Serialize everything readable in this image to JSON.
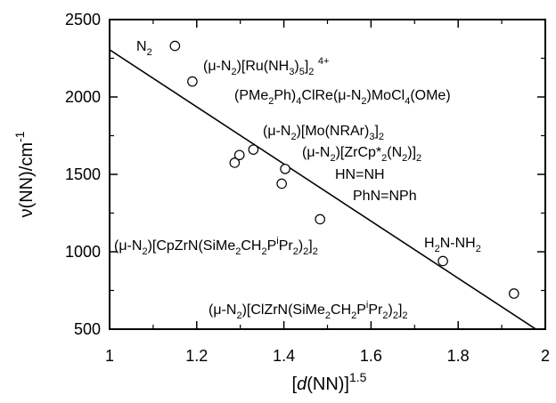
{
  "chart_data": {
    "type": "scatter",
    "xlabel": {
      "open": "[",
      "italic": "d",
      "rest": "(NN)]",
      "sup": "1.5"
    },
    "ylabel": {
      "main": "ν(NN)/cm",
      "sup": "-1"
    },
    "xlim": [
      1,
      2
    ],
    "ylim": [
      500,
      2500
    ],
    "xticks": [
      "1",
      "1.2",
      "1.4",
      "1.6",
      "1.8",
      "2"
    ],
    "yticks": [
      "500",
      "1000",
      "1500",
      "2000",
      "2500"
    ],
    "grid": false,
    "points": [
      {
        "x": 1.15,
        "y": 2330
      },
      {
        "x": 1.19,
        "y": 2100
      },
      {
        "x": 1.287,
        "y": 1575
      },
      {
        "x": 1.298,
        "y": 1625
      },
      {
        "x": 1.33,
        "y": 1660
      },
      {
        "x": 1.395,
        "y": 1440
      },
      {
        "x": 1.403,
        "y": 1535
      },
      {
        "x": 1.483,
        "y": 1210
      },
      {
        "x": 1.765,
        "y": 940
      },
      {
        "x": 1.928,
        "y": 730
      }
    ],
    "fit_line": {
      "x": [
        1.0,
        2.0
      ],
      "y": [
        2305,
        460
      ]
    },
    "annotations": [
      {
        "id": "n2",
        "segs": [
          [
            "N"
          ],
          [
            "2",
            "sub"
          ]
        ]
      },
      {
        "id": "ru",
        "segs": [
          [
            "(μ-N"
          ],
          [
            "2",
            "sub"
          ],
          [
            ")[Ru(NH"
          ],
          [
            "3",
            "sub"
          ],
          [
            ")"
          ],
          [
            "5",
            "sub"
          ],
          [
            "]"
          ],
          [
            "2",
            "sub"
          ],
          [
            " "
          ],
          [
            "4+",
            "sup"
          ]
        ]
      },
      {
        "id": "re-mo",
        "segs": [
          [
            "(PMe"
          ],
          [
            "2",
            "sub"
          ],
          [
            "Ph)"
          ],
          [
            "4",
            "sub"
          ],
          [
            "ClRe(μ-N"
          ],
          [
            "2",
            "sub"
          ],
          [
            ")MoCl"
          ],
          [
            "4",
            "sub"
          ],
          [
            "(OMe)"
          ]
        ]
      },
      {
        "id": "mo",
        "segs": [
          [
            "(μ-N"
          ],
          [
            "2",
            "sub"
          ],
          [
            ")[Mo(NRAr)"
          ],
          [
            "3",
            "sub"
          ],
          [
            "]"
          ],
          [
            "2",
            "sub"
          ]
        ]
      },
      {
        "id": "zrcp",
        "segs": [
          [
            "(μ-N"
          ],
          [
            "2",
            "sub"
          ],
          [
            ")[ZrCp*"
          ],
          [
            "2",
            "sub"
          ],
          [
            "(N"
          ],
          [
            "2",
            "sub"
          ],
          [
            ")]"
          ],
          [
            "2",
            "sub"
          ]
        ]
      },
      {
        "id": "diazene",
        "segs": [
          [
            "HN=NH"
          ]
        ]
      },
      {
        "id": "azobenz",
        "segs": [
          [
            "PhN=NPh"
          ]
        ]
      },
      {
        "id": "cpzr",
        "segs": [
          [
            "(μ-N"
          ],
          [
            "2",
            "sub"
          ],
          [
            ")[CpZrN(SiMe"
          ],
          [
            "2",
            "sub"
          ],
          [
            "CH"
          ],
          [
            "2",
            "sub"
          ],
          [
            "P"
          ],
          [
            "i",
            "sup"
          ],
          [
            "Pr"
          ],
          [
            "2",
            "sub"
          ],
          [
            ")"
          ],
          [
            "2",
            "sub"
          ],
          [
            "]"
          ],
          [
            "2",
            "sub"
          ]
        ]
      },
      {
        "id": "hydraz",
        "segs": [
          [
            "H"
          ],
          [
            "2",
            "sub"
          ],
          [
            "N-NH"
          ],
          [
            "2",
            "sub"
          ]
        ]
      },
      {
        "id": "clzr",
        "segs": [
          [
            "(μ-N"
          ],
          [
            "2",
            "sub"
          ],
          [
            ")[ClZrN(SiMe"
          ],
          [
            "2",
            "sub"
          ],
          [
            "CH"
          ],
          [
            "2",
            "sub"
          ],
          [
            "P"
          ],
          [
            "i",
            "sup"
          ],
          [
            "Pr"
          ],
          [
            "2",
            "sub"
          ],
          [
            ")"
          ],
          [
            "2",
            "sub"
          ],
          [
            "]"
          ],
          [
            "2",
            "sub"
          ]
        ]
      }
    ]
  }
}
